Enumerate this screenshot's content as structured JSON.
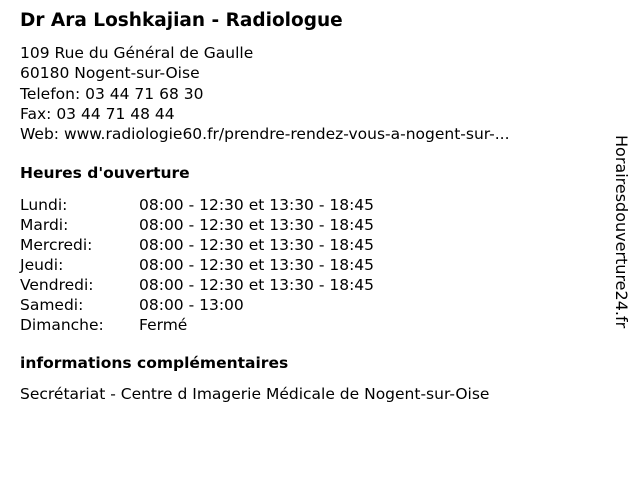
{
  "title": "Dr Ara Loshkajian - Radiologue",
  "address": [
    "109 Rue du Général de Gaulle",
    "60180 Nogent-sur-Oise"
  ],
  "phone": "Telefon: 03 44 71 68 30",
  "fax": "Fax: 03 44 71 48 44",
  "web": "Web: www.radiologie60.fr/prendre-rendez-vous-a-nogent-sur-...",
  "hours_heading": "Heures d'ouverture",
  "hours": [
    {
      "day": "Lundi:",
      "time": "08:00 - 12:30 et 13:30 - 18:45"
    },
    {
      "day": "Mardi:",
      "time": "08:00 - 12:30 et 13:30 - 18:45"
    },
    {
      "day": "Mercredi:",
      "time": "08:00 - 12:30 et 13:30 - 18:45"
    },
    {
      "day": "Jeudi:",
      "time": "08:00 - 12:30 et 13:30 - 18:45"
    },
    {
      "day": "Vendredi:",
      "time": "08:00 - 12:30 et 13:30 - 18:45"
    },
    {
      "day": "Samedi:",
      "time": "08:00 - 13:00"
    },
    {
      "day": "Dimanche:",
      "time": "Fermé"
    }
  ],
  "info_heading": "informations complémentaires",
  "info_text": "Secrétariat - Centre d Imagerie Médicale de Nogent-sur-Oise",
  "watermark": "Horairesdouverture24.fr"
}
